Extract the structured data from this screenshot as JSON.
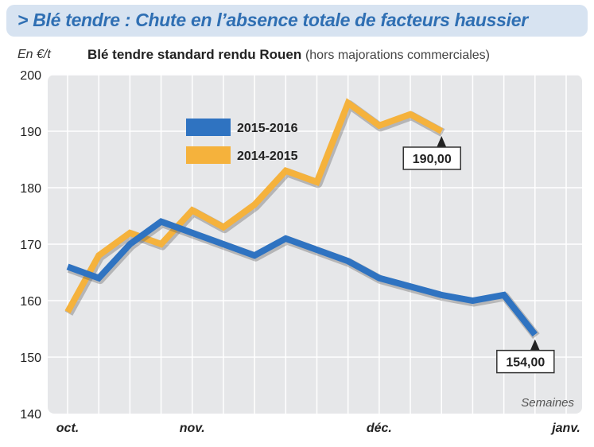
{
  "header": {
    "title": "> Blé tendre : Chute en l’absence totale de facteurs haussier",
    "unit": "En €/t",
    "subtitle": "Blé tendre standard rendu Rouen",
    "subtitle_note": "(hors majorations commerciales)"
  },
  "chart_data": {
    "type": "line",
    "title": "Blé tendre standard rendu Rouen",
    "ylabel": "En €/t",
    "xlabel": "Semaines",
    "ylim": [
      140,
      200
    ],
    "yticks": [
      140,
      150,
      160,
      170,
      180,
      190,
      200
    ],
    "grid": true,
    "legend_position": "top-left",
    "month_labels": [
      "oct.",
      "nov.",
      "déc.",
      "janv."
    ],
    "month_positions": [
      0,
      4,
      10,
      16
    ],
    "x": [
      0,
      1,
      2,
      3,
      4,
      5,
      6,
      7,
      8,
      9,
      10,
      11,
      12,
      13,
      14,
      15,
      16
    ],
    "series": [
      {
        "name": "2015-2016",
        "color": "#2f73c1",
        "values": [
          166,
          164,
          170,
          174,
          null,
          170,
          168,
          171,
          null,
          167,
          164,
          null,
          161,
          160,
          161,
          154,
          null
        ]
      },
      {
        "name": "2014-2015",
        "color": "#f5b23c",
        "values": [
          158,
          168,
          172,
          170,
          176,
          173,
          177,
          183,
          181,
          195,
          191,
          193,
          190,
          null,
          null,
          null,
          null
        ]
      }
    ],
    "annotations": [
      {
        "series": "2014-2015",
        "text": "190,00"
      },
      {
        "series": "2015-2016",
        "text": "154,00"
      }
    ]
  }
}
